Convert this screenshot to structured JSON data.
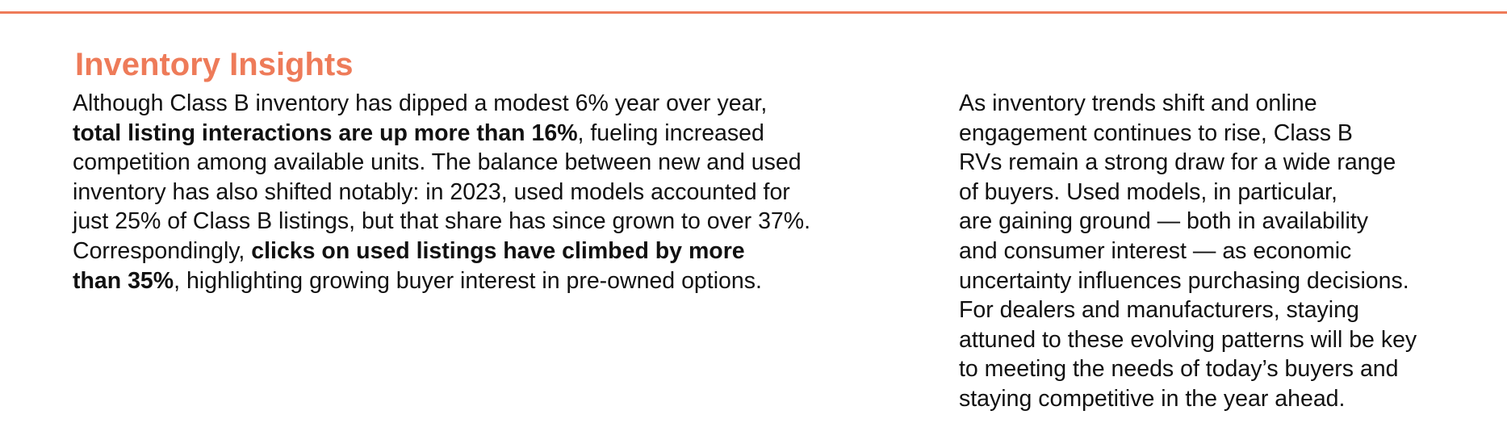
{
  "accent_color": "#ee7b59",
  "heading": "Inventory Insights",
  "left_column": {
    "lines": [
      [
        {
          "text": "Although Class B inventory has dipped a modest 6% year over year,",
          "bold": false
        }
      ],
      [
        {
          "text": "total listing interactions are up more than 16%",
          "bold": true
        },
        {
          "text": ", fueling increased",
          "bold": false
        }
      ],
      [
        {
          "text": "competition among available units. The balance between new and used",
          "bold": false
        }
      ],
      [
        {
          "text": "inventory has also shifted notably: in 2023, used models accounted for",
          "bold": false
        }
      ],
      [
        {
          "text": "just 25% of Class B listings, but that share has since grown to over 37%.",
          "bold": false
        }
      ],
      [
        {
          "text": "Correspondingly, ",
          "bold": false
        },
        {
          "text": "clicks on used listings have climbed by more",
          "bold": true
        }
      ],
      [
        {
          "text": "than 35%",
          "bold": true
        },
        {
          "text": ", highlighting growing buyer interest in pre-owned options.",
          "bold": false
        }
      ]
    ]
  },
  "right_column": {
    "lines": [
      [
        {
          "text": "As inventory trends shift and online",
          "bold": false
        }
      ],
      [
        {
          "text": "engagement continues to rise, Class B",
          "bold": false
        }
      ],
      [
        {
          "text": "RVs remain a strong draw for a wide range",
          "bold": false
        }
      ],
      [
        {
          "text": "of buyers. Used models, in particular,",
          "bold": false
        }
      ],
      [
        {
          "text": "are gaining ground — both in availability",
          "bold": false
        }
      ],
      [
        {
          "text": "and consumer interest — as economic",
          "bold": false
        }
      ],
      [
        {
          "text": "uncertainty influences purchasing decisions.",
          "bold": false
        }
      ],
      [
        {
          "text": "For dealers and manufacturers, staying",
          "bold": false
        }
      ],
      [
        {
          "text": "attuned to these evolving patterns will be key",
          "bold": false
        }
      ],
      [
        {
          "text": "to meeting the needs of today’s buyers and",
          "bold": false
        }
      ],
      [
        {
          "text": "staying competitive in the year ahead.",
          "bold": false
        }
      ]
    ]
  }
}
